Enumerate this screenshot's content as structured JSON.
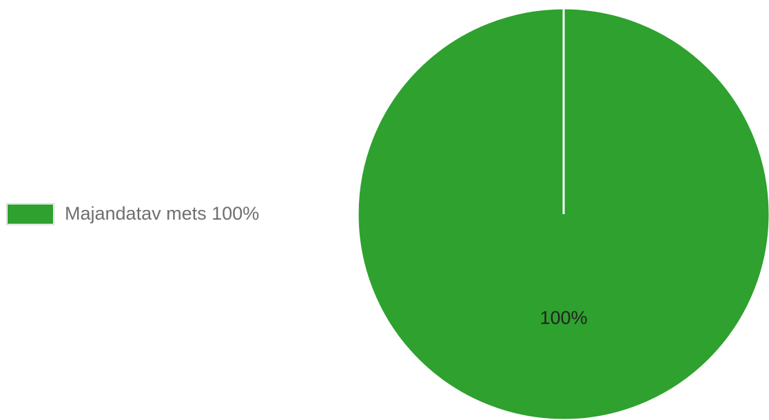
{
  "chart_data": {
    "type": "pie",
    "title": "",
    "legend_position": "left",
    "slices": [
      {
        "label": "Majandatav mets",
        "value": 100,
        "percent_label": "100%",
        "legend_text": "Majandatav mets 100%",
        "color": "#2ea12e"
      }
    ]
  }
}
